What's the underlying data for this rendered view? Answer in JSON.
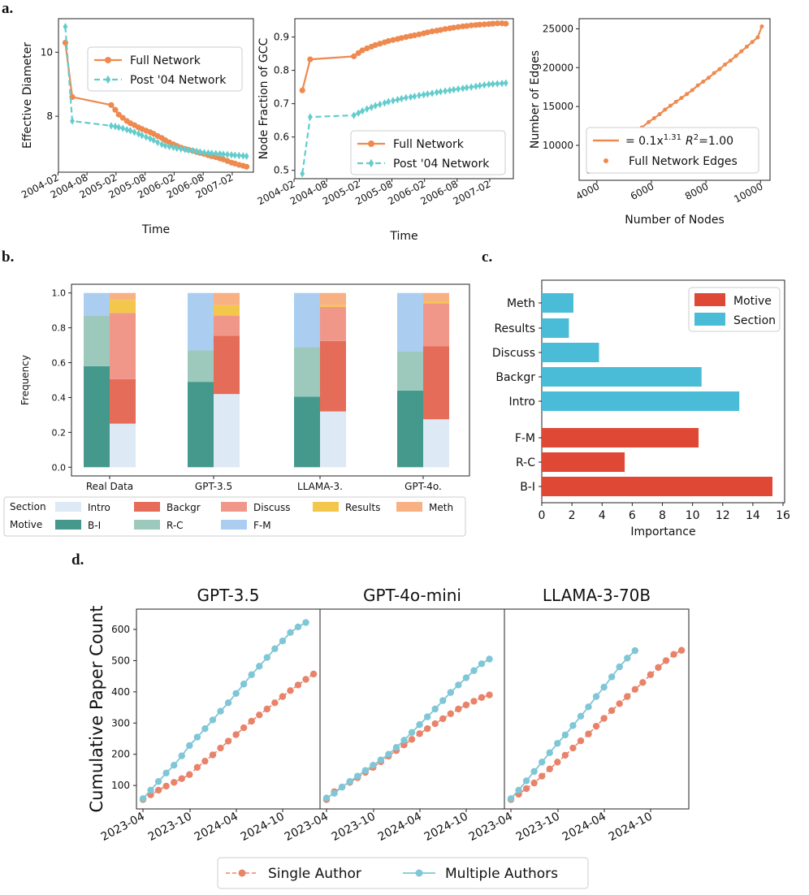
{
  "panel_labels": {
    "a": "a",
    "b": "b",
    "c": "c",
    "d": "d"
  },
  "colors": {
    "orange": "#ee8a4f",
    "teal": "#63cccc",
    "bi": "#45998c",
    "rc": "#9dc9bd",
    "fm": "#aacdf0",
    "intro": "#dde9f4",
    "backgr": "#e56c58",
    "discuss": "#f0978a",
    "results": "#f2c74c",
    "meth": "#f8b182",
    "motive": "#e04836",
    "section": "#4bbcd7",
    "single": "#e8836a",
    "multiple": "#7fc6d6"
  },
  "chart_data": [
    {
      "id": "a1",
      "type": "line",
      "xlabel": "Time",
      "ylabel": "Effective Diameter",
      "xticks": [
        "2004-02",
        "2004-08",
        "2005-02",
        "2005-08",
        "2006-02",
        "2006-08",
        "2007-02"
      ],
      "yticks": [
        "8",
        "10"
      ],
      "legend": "top-right",
      "series": [
        {
          "name": "Full Network",
          "style": "solid-circle",
          "x": [
            2004.21,
            2004.33,
            2005.0,
            2005.07,
            2005.13,
            2005.2,
            2005.27,
            2005.33,
            2005.4,
            2005.47,
            2005.53,
            2005.6,
            2005.67,
            2005.73,
            2005.8,
            2005.87,
            2005.93,
            2006.0,
            2006.07,
            2006.13,
            2006.2,
            2006.27,
            2006.33,
            2006.4,
            2006.47,
            2006.53,
            2006.6,
            2006.67,
            2006.73,
            2006.8,
            2006.87,
            2006.93,
            2007.0,
            2007.07,
            2007.13,
            2007.2,
            2007.27,
            2007.33
          ],
          "y": [
            10.3,
            8.6,
            8.35,
            8.2,
            8.05,
            7.95,
            7.85,
            7.78,
            7.72,
            7.65,
            7.6,
            7.55,
            7.5,
            7.45,
            7.38,
            7.32,
            7.25,
            7.18,
            7.12,
            7.07,
            7.02,
            6.98,
            6.95,
            6.92,
            6.88,
            6.85,
            6.82,
            6.78,
            6.75,
            6.72,
            6.68,
            6.65,
            6.6,
            6.55,
            6.52,
            6.48,
            6.45,
            6.42
          ]
        },
        {
          "name": "Post '04 Network",
          "style": "dashed-diamond",
          "x": [
            2004.21,
            2004.33,
            2005.0,
            2005.07,
            2005.13,
            2005.2,
            2005.27,
            2005.33,
            2005.4,
            2005.47,
            2005.53,
            2005.6,
            2005.67,
            2005.73,
            2005.8,
            2005.87,
            2005.93,
            2006.0,
            2006.07,
            2006.13,
            2006.2,
            2006.27,
            2006.33,
            2006.4,
            2006.47,
            2006.53,
            2006.6,
            2006.67,
            2006.73,
            2006.8,
            2006.87,
            2006.93,
            2007.0,
            2007.07,
            2007.13,
            2007.2,
            2007.27,
            2007.33
          ],
          "y": [
            10.8,
            7.85,
            7.7,
            7.68,
            7.65,
            7.62,
            7.58,
            7.55,
            7.5,
            7.45,
            7.4,
            7.35,
            7.3,
            7.25,
            7.18,
            7.12,
            7.08,
            7.05,
            7.03,
            7.0,
            6.98,
            6.96,
            6.94,
            6.92,
            6.9,
            6.88,
            6.86,
            6.85,
            6.84,
            6.83,
            6.82,
            6.81,
            6.8,
            6.79,
            6.78,
            6.77,
            6.76,
            6.75
          ]
        }
      ]
    },
    {
      "id": "a2",
      "type": "line",
      "xlabel": "Time",
      "ylabel": "Node Fraction of GCC",
      "xticks": [
        "2004-02",
        "2004-08",
        "2005-02",
        "2005-08",
        "2006-02",
        "2006-08",
        "2007-02"
      ],
      "yticks": [
        "0.5",
        "0.6",
        "0.7",
        "0.8",
        "0.9"
      ],
      "legend": "bottom-right",
      "series": [
        {
          "name": "Full Network",
          "style": "solid-circle",
          "x": [
            2004.21,
            2004.33,
            2005.0,
            2005.07,
            2005.13,
            2005.2,
            2005.27,
            2005.33,
            2005.4,
            2005.47,
            2005.53,
            2005.6,
            2005.67,
            2005.73,
            2005.8,
            2005.87,
            2005.93,
            2006.0,
            2006.07,
            2006.13,
            2006.2,
            2006.27,
            2006.33,
            2006.4,
            2006.47,
            2006.53,
            2006.6,
            2006.67,
            2006.73,
            2006.8,
            2006.87,
            2006.93,
            2007.0,
            2007.07,
            2007.13,
            2007.2,
            2007.27,
            2007.33
          ],
          "y": [
            0.74,
            0.833,
            0.842,
            0.852,
            0.86,
            0.866,
            0.871,
            0.876,
            0.88,
            0.884,
            0.888,
            0.891,
            0.894,
            0.897,
            0.9,
            0.903,
            0.905,
            0.908,
            0.911,
            0.914,
            0.917,
            0.919,
            0.921,
            0.924,
            0.926,
            0.928,
            0.93,
            0.932,
            0.933,
            0.935,
            0.936,
            0.937,
            0.938,
            0.939,
            0.94,
            0.941,
            0.941,
            0.94
          ]
        },
        {
          "name": "Post '04 Network",
          "style": "dashed-diamond",
          "x": [
            2004.21,
            2004.33,
            2005.0,
            2005.07,
            2005.13,
            2005.2,
            2005.27,
            2005.33,
            2005.4,
            2005.47,
            2005.53,
            2005.6,
            2005.67,
            2005.73,
            2005.8,
            2005.87,
            2005.93,
            2006.0,
            2006.07,
            2006.13,
            2006.2,
            2006.27,
            2006.33,
            2006.4,
            2006.47,
            2006.53,
            2006.6,
            2006.67,
            2006.73,
            2006.8,
            2006.87,
            2006.93,
            2007.0,
            2007.07,
            2007.13,
            2007.2,
            2007.27,
            2007.33
          ],
          "y": [
            0.49,
            0.66,
            0.665,
            0.672,
            0.678,
            0.684,
            0.689,
            0.694,
            0.698,
            0.702,
            0.706,
            0.709,
            0.712,
            0.715,
            0.718,
            0.72,
            0.722,
            0.725,
            0.727,
            0.729,
            0.731,
            0.734,
            0.736,
            0.738,
            0.74,
            0.742,
            0.744,
            0.746,
            0.748,
            0.75,
            0.752,
            0.754,
            0.756,
            0.758,
            0.759,
            0.76,
            0.761,
            0.762
          ]
        }
      ]
    },
    {
      "id": "a3",
      "type": "scatter",
      "xlabel": "Number of Nodes",
      "ylabel": "Number of Edges",
      "xticks": [
        "4000",
        "6000",
        "8000",
        "10000"
      ],
      "yticks": [
        "10000",
        "15000",
        "20000",
        "25000"
      ],
      "legend": "bottom-right",
      "fit_label_pre": "= 0.1x",
      "fit_exp": "1.31",
      "fit_r": "R",
      "fit_r2": "2",
      "fit_post": "=1.00",
      "points_label": "Full Network Edges",
      "x": [
        3700,
        4200,
        4600,
        4900,
        5150,
        5400,
        5650,
        5900,
        6100,
        6300,
        6500,
        6700,
        6900,
        7100,
        7300,
        7500,
        7700,
        7900,
        8100,
        8300,
        8500,
        8700,
        8900,
        9100,
        9300,
        9500,
        9700,
        9900,
        10050
      ],
      "y": [
        6600,
        8300,
        9400,
        10200,
        10900,
        11600,
        12300,
        13000,
        13500,
        14000,
        14600,
        15100,
        15600,
        16100,
        16600,
        17100,
        17700,
        18200,
        18700,
        19300,
        19800,
        20400,
        20900,
        21500,
        22100,
        22700,
        23300,
        23900,
        25300
      ]
    },
    {
      "id": "b",
      "type": "bar",
      "ylabel": "Frequency",
      "categories": [
        "Real Data",
        "GPT-3.5",
        "LLAMA-3.",
        "GPT-4o."
      ],
      "yticks": [
        "0.0",
        "0.2",
        "0.4",
        "0.6",
        "0.8",
        "1.0"
      ],
      "motive_stacks": [
        {
          "B-I": 0.58,
          "R-C": 0.29,
          "F-M": 0.13
        },
        {
          "B-I": 0.49,
          "R-C": 0.18,
          "F-M": 0.33
        },
        {
          "B-I": 0.405,
          "R-C": 0.285,
          "F-M": 0.31
        },
        {
          "B-I": 0.44,
          "R-C": 0.225,
          "F-M": 0.335
        }
      ],
      "section_stacks": [
        {
          "Intro": 0.25,
          "Backgr": 0.255,
          "Discuss": 0.38,
          "Results": 0.075,
          "Meth": 0.04
        },
        {
          "Intro": 0.42,
          "Backgr": 0.335,
          "Discuss": 0.115,
          "Results": 0.06,
          "Meth": 0.07
        },
        {
          "Intro": 0.32,
          "Backgr": 0.405,
          "Discuss": 0.195,
          "Results": 0.01,
          "Meth": 0.07
        },
        {
          "Intro": 0.275,
          "Backgr": 0.42,
          "Discuss": 0.245,
          "Results": 0.01,
          "Meth": 0.05
        }
      ],
      "legend_row_section": "Section",
      "legend_row_motive": "Motive",
      "section_labels": [
        "Intro",
        "Backgr",
        "Discuss",
        "Results",
        "Meth"
      ],
      "motive_labels": [
        "B-I",
        "R-C",
        "F-M"
      ]
    },
    {
      "id": "c",
      "type": "bar",
      "orientation": "horizontal",
      "xlabel": "Importance",
      "xticks": [
        "0",
        "2",
        "4",
        "6",
        "8",
        "10",
        "12",
        "14",
        "16"
      ],
      "legend": [
        "Motive",
        "Section"
      ],
      "bars": [
        {
          "label": "Meth",
          "value": 2.1,
          "group": "Section"
        },
        {
          "label": "Results",
          "value": 1.8,
          "group": "Section"
        },
        {
          "label": "Discuss",
          "value": 3.8,
          "group": "Section"
        },
        {
          "label": "Backgr",
          "value": 10.6,
          "group": "Section"
        },
        {
          "label": "Intro",
          "value": 13.1,
          "group": "Section"
        },
        {
          "label": "F-M",
          "value": 10.4,
          "group": "Motive"
        },
        {
          "label": "R-C",
          "value": 5.5,
          "group": "Motive"
        },
        {
          "label": "B-I",
          "value": 15.3,
          "group": "Motive"
        }
      ]
    },
    {
      "id": "d",
      "type": "line",
      "ylabel": "Cumulative Paper Count",
      "yticks": [
        "100",
        "200",
        "300",
        "400",
        "500",
        "600"
      ],
      "legend": [
        "Single Author",
        "Multiple Authors"
      ],
      "subplots": [
        {
          "title": "GPT-3.5",
          "xticks": [
            "2023-04",
            "2023-10",
            "2024-04",
            "2024-10"
          ],
          "single": [
            55,
            70,
            85,
            98,
            110,
            122,
            135,
            158,
            178,
            198,
            220,
            242,
            263,
            285,
            306,
            326,
            345,
            365,
            385,
            404,
            422,
            440,
            457
          ],
          "multiple": [
            58,
            85,
            113,
            140,
            165,
            195,
            228,
            255,
            282,
            310,
            338,
            365,
            395,
            425,
            455,
            482,
            510,
            538,
            563,
            590,
            608,
            622
          ]
        },
        {
          "title": "GPT-4o-mini",
          "xticks": [
            "2023-04",
            "2023-10",
            "2024-04",
            "2024-10"
          ],
          "single": [
            55,
            80,
            95,
            110,
            125,
            142,
            158,
            176,
            194,
            212,
            230,
            248,
            266,
            282,
            298,
            314,
            330,
            345,
            358,
            370,
            382,
            390
          ],
          "multiple": [
            60,
            75,
            95,
            113,
            130,
            148,
            165,
            182,
            200,
            222,
            245,
            270,
            295,
            320,
            345,
            372,
            398,
            422,
            445,
            468,
            490,
            505
          ]
        },
        {
          "title": "LLAMA-3-70B",
          "xticks": [
            "2023-04",
            "2023-10",
            "2024-04",
            "2024-10"
          ],
          "single": [
            55,
            72,
            90,
            108,
            130,
            153,
            175,
            197,
            220,
            243,
            265,
            290,
            315,
            340,
            362,
            385,
            408,
            430,
            455,
            478,
            500,
            520,
            533
          ],
          "multiple": [
            58,
            85,
            115,
            145,
            175,
            205,
            235,
            262,
            292,
            322,
            352,
            385,
            415,
            448,
            480,
            508,
            532
          ]
        }
      ]
    }
  ]
}
